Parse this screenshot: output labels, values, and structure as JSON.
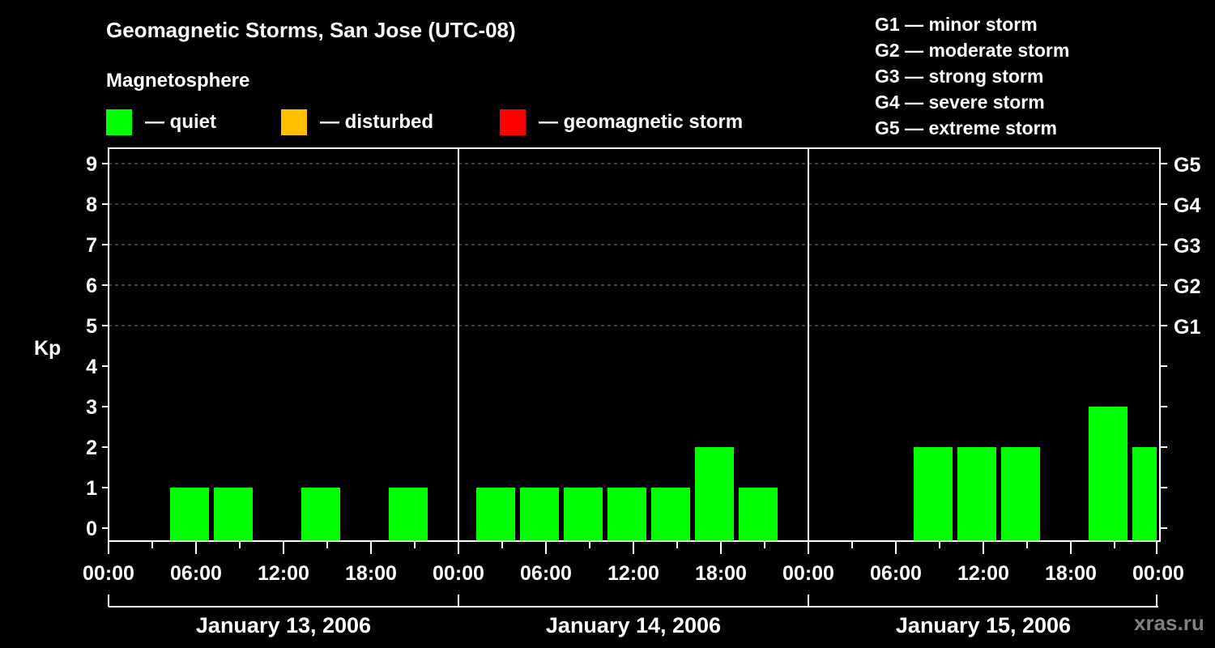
{
  "header": {
    "title": "Geomagnetic Storms, San Jose (UTC-08)",
    "subtitle": "Magnetosphere"
  },
  "legend": [
    {
      "label": "— quiet",
      "color": "#00ff00"
    },
    {
      "label": "— disturbed",
      "color": "#ffbf00"
    },
    {
      "label": "— geomagnetic storm",
      "color": "#ff0000"
    }
  ],
  "g_scale": [
    {
      "label": "G1 — minor storm"
    },
    {
      "label": "G2 — moderate storm"
    },
    {
      "label": "G3 — strong storm"
    },
    {
      "label": "G4 — severe storm"
    },
    {
      "label": "G5 — extreme storm"
    }
  ],
  "watermark": "xras.ru",
  "chart_data": {
    "type": "bar",
    "title": "Geomagnetic Storms, San Jose (UTC-08)",
    "xlabel": "",
    "ylabel": "Kp",
    "ylim": [
      0,
      9
    ],
    "y_ticks": [
      "0",
      "1",
      "2",
      "3",
      "4",
      "5",
      "6",
      "7",
      "8",
      "9"
    ],
    "right_axis_ticks": [
      {
        "kp": 5,
        "label": "G1"
      },
      {
        "kp": 6,
        "label": "G2"
      },
      {
        "kp": 7,
        "label": "G3"
      },
      {
        "kp": 8,
        "label": "G4"
      },
      {
        "kp": 9,
        "label": "G5"
      }
    ],
    "x_tick_labels": [
      "00:00",
      "06:00",
      "12:00",
      "18:00",
      "00:00",
      "06:00",
      "12:00",
      "18:00",
      "00:00",
      "06:00",
      "12:00",
      "18:00",
      "00:00"
    ],
    "days": [
      "January 13, 2006",
      "January 14, 2006",
      "January 15, 2006"
    ],
    "grid": "dashed horizontal at Kp 5-9",
    "bar_interval_hours": 3,
    "series": [
      {
        "name": "Kp (quiet)",
        "color": "#00ff00",
        "points": [
          {
            "day": "January 13, 2006",
            "start": "04:00",
            "kp": 1
          },
          {
            "day": "January 13, 2006",
            "start": "07:00",
            "kp": 1
          },
          {
            "day": "January 13, 2006",
            "start": "13:00",
            "kp": 1
          },
          {
            "day": "January 13, 2006",
            "start": "19:00",
            "kp": 1
          },
          {
            "day": "January 14, 2006",
            "start": "01:00",
            "kp": 1
          },
          {
            "day": "January 14, 2006",
            "start": "04:00",
            "kp": 1
          },
          {
            "day": "January 14, 2006",
            "start": "07:00",
            "kp": 1
          },
          {
            "day": "January 14, 2006",
            "start": "10:00",
            "kp": 1
          },
          {
            "day": "January 14, 2006",
            "start": "13:00",
            "kp": 1
          },
          {
            "day": "January 14, 2006",
            "start": "16:00",
            "kp": 2
          },
          {
            "day": "January 14, 2006",
            "start": "19:00",
            "kp": 1
          },
          {
            "day": "January 15, 2006",
            "start": "07:00",
            "kp": 2
          },
          {
            "day": "January 15, 2006",
            "start": "10:00",
            "kp": 2
          },
          {
            "day": "January 15, 2006",
            "start": "13:00",
            "kp": 2
          },
          {
            "day": "January 15, 2006",
            "start": "19:00",
            "kp": 3
          },
          {
            "day": "January 15, 2006",
            "start": "22:00",
            "kp": 2
          }
        ]
      }
    ]
  }
}
